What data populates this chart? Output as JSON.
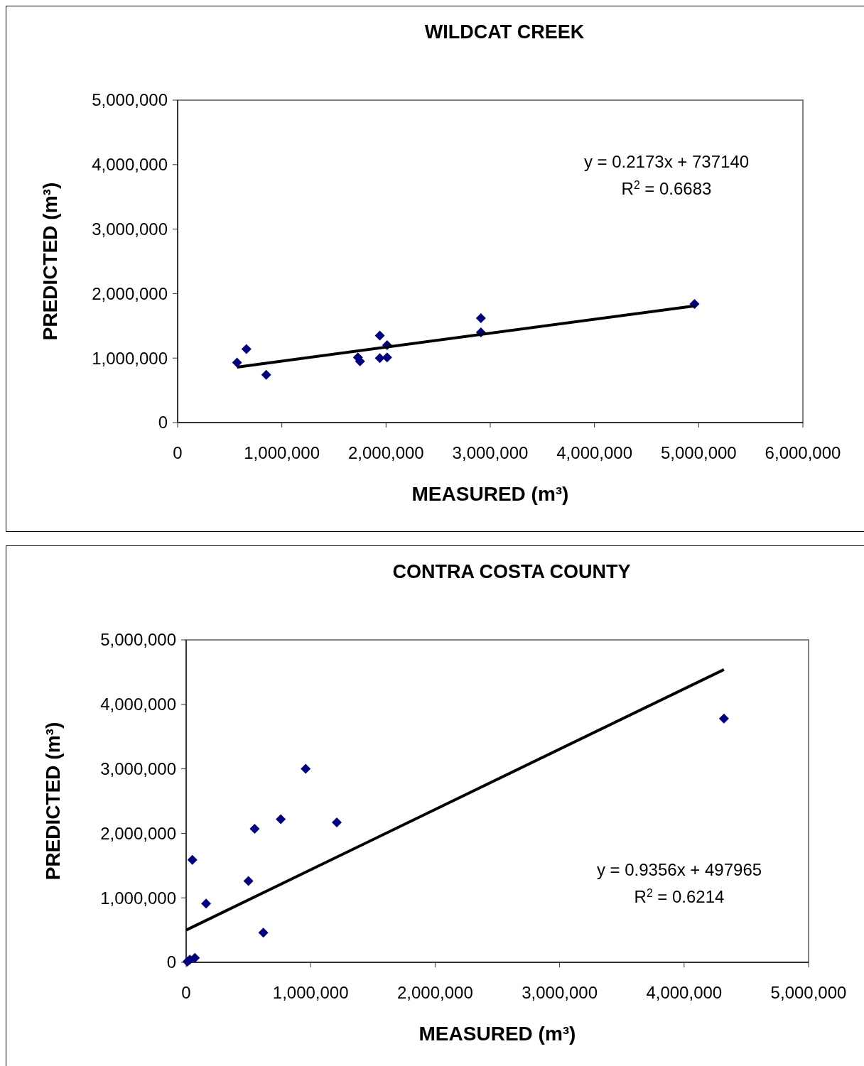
{
  "chart_data": [
    {
      "type": "scatter",
      "title": "WILDCAT CREEK",
      "xlabel": "MEASURED (m³)",
      "ylabel": "PREDICTED (m³)",
      "annotations": [
        "y = 0.2173x + 737140",
        "R$^{2}$ = 0.6683"
      ],
      "xlim": [
        0,
        6000000
      ],
      "ylim": [
        0,
        5000000
      ],
      "xticks": [
        0,
        {
          "value": 1000000,
          "label": "1,000,000"
        },
        {
          "value": 2000000,
          "label": "2,000,000"
        },
        {
          "value": 3000000,
          "label": "3,000,000"
        },
        {
          "value": 4000000,
          "label": "4,000,000"
        },
        {
          "value": 5000000,
          "label": "5,000,000"
        },
        {
          "value": 6000000,
          "label": "6,000,000"
        }
      ],
      "yticks": [
        0,
        {
          "value": 1000000,
          "label": "1,000,000"
        },
        {
          "value": 2000000,
          "label": "2,000,000"
        },
        {
          "value": 3000000,
          "label": "3,000,000"
        },
        {
          "value": 4000000,
          "label": "4,000,000"
        },
        {
          "value": 5000000,
          "label": "5,000,000"
        }
      ],
      "grid": false,
      "marker": "diamond",
      "series": [
        {
          "color": "#000080",
          "x": [
            570000,
            660000,
            850000,
            1730000,
            1750000,
            1940000,
            2010000,
            1940000,
            2010000,
            2910000,
            2910000,
            4960000
          ],
          "values": [
            930000,
            1140000,
            740000,
            1010000,
            950000,
            1350000,
            1200000,
            1000000,
            1010000,
            1620000,
            1400000,
            1840000
          ]
        },
        {
          "type": "line",
          "color": "#000000",
          "marker": "none",
          "x": [
            570000,
            4960000
          ],
          "values": [
            860000,
            1810000
          ]
        }
      ]
    },
    {
      "type": "scatter",
      "title": "CONTRA COSTA COUNTY",
      "xlabel": "MEASURED (m³)",
      "ylabel": "PREDICTED (m³)",
      "annotations": [
        "y = 0.9356x + 497965",
        "R$^{2}$ = 0.6214"
      ],
      "xlim": [
        0,
        5000000
      ],
      "ylim": [
        0,
        5000000
      ],
      "xticks": [
        0,
        {
          "value": 1000000,
          "label": "1,000,000"
        },
        {
          "value": 2000000,
          "label": "2,000,000"
        },
        {
          "value": 3000000,
          "label": "3,000,000"
        },
        {
          "value": 4000000,
          "label": "4,000,000"
        },
        {
          "value": 5000000,
          "label": "5,000,000"
        }
      ],
      "yticks": [
        0,
        {
          "value": 1000000,
          "label": "1,000,000"
        },
        {
          "value": 2000000,
          "label": "2,000,000"
        },
        {
          "value": 3000000,
          "label": "3,000,000"
        },
        {
          "value": 4000000,
          "label": "4,000,000"
        },
        {
          "value": 5000000,
          "label": "5,000,000"
        }
      ],
      "grid": false,
      "marker": "diamond",
      "series": [
        {
          "color": "#000080",
          "x": [
            960000,
            760000,
            550000,
            1210000,
            50000,
            500000,
            160000,
            620000,
            10000,
            30000,
            70000,
            4320000
          ],
          "values": [
            3000000,
            2220000,
            2070000,
            2170000,
            1590000,
            1260000,
            910000,
            460000,
            10000,
            40000,
            70000,
            3780000
          ]
        },
        {
          "type": "line",
          "color": "#000000",
          "marker": "none",
          "x": [
            0,
            4320000
          ],
          "values": [
            500000,
            4540000
          ]
        }
      ]
    }
  ]
}
